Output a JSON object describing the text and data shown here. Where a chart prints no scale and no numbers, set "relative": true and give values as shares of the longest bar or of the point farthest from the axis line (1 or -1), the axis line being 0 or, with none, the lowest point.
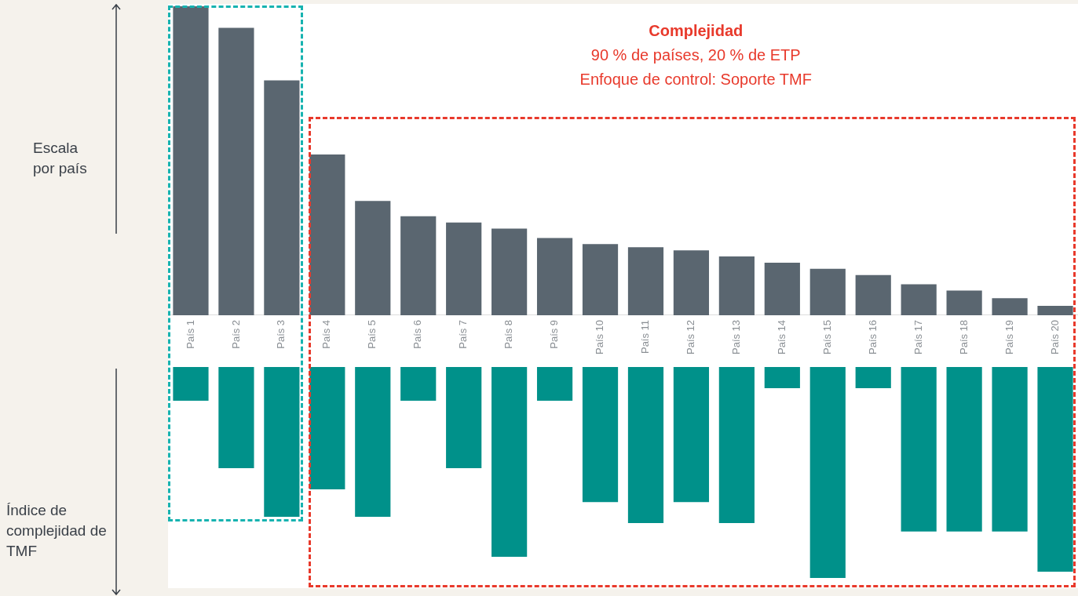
{
  "chart_data": [
    {
      "type": "bar",
      "ylabel": "Escala por país",
      "categories": [
        "País 1",
        "País 2",
        "País 3",
        "País 4",
        "País 5",
        "País 6",
        "País 7",
        "País 8",
        "País 9",
        "País 10",
        "País 11",
        "País 12",
        "País 13",
        "País 14",
        "País 15",
        "País 16",
        "País 17",
        "País 18",
        "País 19",
        "País 20"
      ],
      "values": [
        1,
        0.93,
        0.76,
        0.52,
        0.37,
        0.32,
        0.3,
        0.28,
        0.25,
        0.23,
        0.22,
        0.21,
        0.19,
        0.17,
        0.15,
        0.13,
        0.1,
        0.08,
        0.055,
        0.03
      ],
      "color": "#5a6670",
      "relative": true,
      "annotations": [
        "Complejidad",
        "90 % de países, 20 % de ETP",
        "Enfoque de control: Soporte TMF"
      ]
    },
    {
      "type": "bar",
      "ylabel": "Índice de complejidad de TMF",
      "categories": [
        null,
        null,
        null,
        null,
        null,
        null,
        null,
        null,
        null,
        null,
        null,
        null,
        null,
        null,
        null,
        null,
        null,
        null,
        null,
        null
      ],
      "values": [
        -0.16,
        -0.48,
        -0.71,
        -0.58,
        -0.71,
        -0.16,
        -0.48,
        -0.9,
        -0.16,
        -0.64,
        -0.74,
        -0.64,
        -0.74,
        -0.1,
        -1,
        -0.1,
        -0.78,
        -0.78,
        -0.78,
        -0.97
      ],
      "color": "#00918a",
      "relative": true
    }
  ]
}
